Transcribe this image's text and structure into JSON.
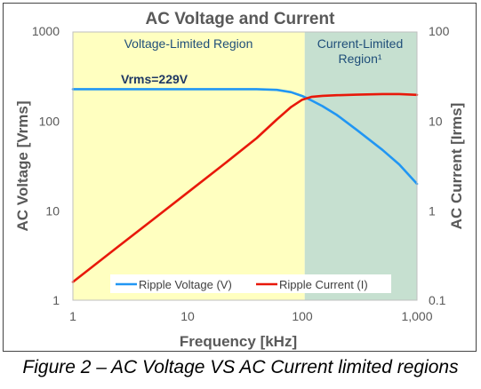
{
  "caption": "Figure 2 – AC Voltage VS AC Current limited regions",
  "chart_data": {
    "type": "line",
    "title": "AC Voltage and Current",
    "xlabel": "Frequency [kHz]",
    "ylabel_left": "AC Voltage [Vrms]",
    "ylabel_right": "AC Current [Irms]",
    "x_scale": "log",
    "y_scale": "log",
    "xlim": [
      1,
      1000
    ],
    "ylim_left": [
      1,
      1000
    ],
    "ylim_right": [
      0.1,
      100
    ],
    "x_ticks": [
      1,
      10,
      100,
      1000
    ],
    "x_tick_labels": [
      "1",
      "10",
      "100",
      "1,000"
    ],
    "y_left_ticks": [
      1,
      10,
      100,
      1000
    ],
    "y_left_tick_labels": [
      "1",
      "10",
      "100",
      "1000"
    ],
    "y_right_ticks": [
      0.1,
      1,
      10,
      100
    ],
    "y_right_tick_labels": [
      "0.1",
      "1",
      "10",
      "100"
    ],
    "regions": [
      {
        "label": "Voltage-Limited Region",
        "x_from": 1,
        "x_to": 105,
        "color": "#FFFFC0"
      },
      {
        "label": "Current-Limited Region¹",
        "x_from": 105,
        "x_to": 1000,
        "color": "#C6E0D0"
      }
    ],
    "annotations": [
      {
        "text": "Vrms=229V",
        "x": 2.3,
        "y": 280
      }
    ],
    "legend_position": "bottom-center",
    "grid": false,
    "series": [
      {
        "name": "Ripple Voltage (V)",
        "axis": "left",
        "color": "#2196F3",
        "x": [
          1,
          2,
          5,
          10,
          20,
          40,
          60,
          80,
          100,
          120,
          150,
          200,
          300,
          500,
          700,
          1000
        ],
        "y": [
          229,
          229,
          229,
          229,
          229,
          229,
          225,
          212,
          192,
          172,
          148,
          118,
          80,
          48,
          33,
          20
        ]
      },
      {
        "name": "Ripple Current (I)",
        "axis": "right",
        "color": "#E8180A",
        "x": [
          1,
          2,
          5,
          10,
          20,
          40,
          60,
          80,
          100,
          120,
          150,
          200,
          300,
          500,
          700,
          1000
        ],
        "y": [
          0.16,
          0.32,
          0.8,
          1.6,
          3.2,
          6.5,
          10.5,
          14.5,
          17.5,
          18.8,
          19.3,
          19.6,
          19.9,
          20.2,
          20.2,
          19.8
        ]
      }
    ]
  }
}
